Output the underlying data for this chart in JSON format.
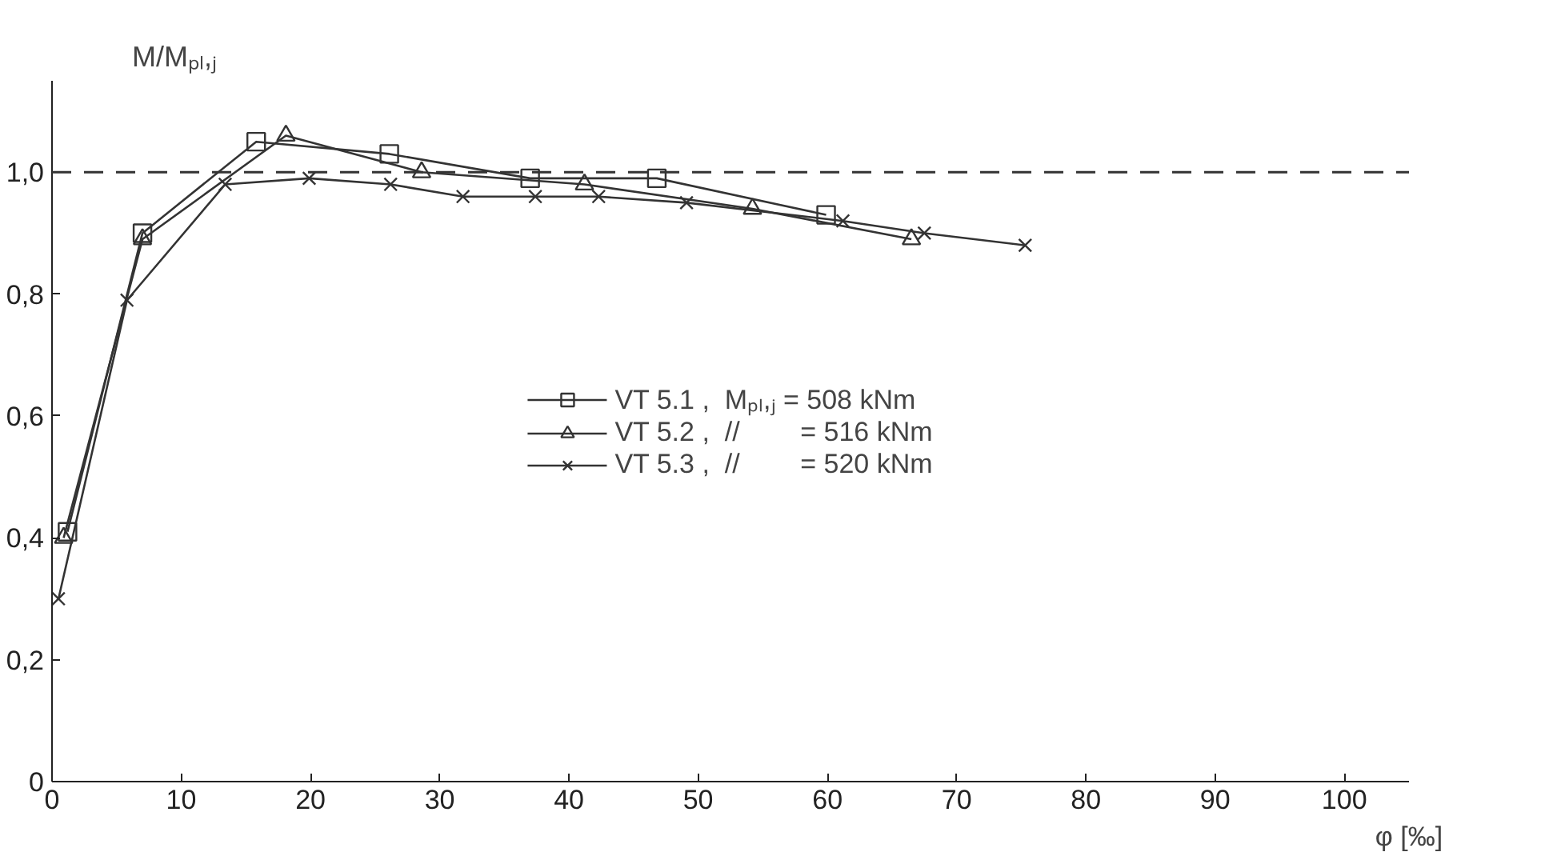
{
  "chart_data": {
    "type": "line",
    "ylabel": "M/Mₚₗ,ⱼ",
    "xlabel": "φ [‰]",
    "xlim": [
      0,
      105
    ],
    "ylim": [
      0,
      1.15
    ],
    "xticks": [
      0,
      10,
      20,
      30,
      40,
      50,
      60,
      70,
      80,
      90,
      100
    ],
    "yticks": [
      {
        "value": 0,
        "label": "0"
      },
      {
        "value": 0.2,
        "label": "0,2"
      },
      {
        "value": 0.4,
        "label": "0,4"
      },
      {
        "value": 0.6,
        "label": "0,6"
      },
      {
        "value": 0.8,
        "label": "0,8"
      },
      {
        "value": 1.0,
        "label": "1,0"
      }
    ],
    "grid": false,
    "legend": "center",
    "ref_lines": [
      {
        "axis": "y",
        "value": 1.0,
        "label": null,
        "line_style": "dashed",
        "color": "#333333"
      }
    ],
    "series": [
      {
        "name": "VT 5.1 ,  Mₚₗ,ⱼ = 508 kNm",
        "color": "#333333",
        "marker": "square",
        "x": [
          1.2,
          7.0,
          15.8,
          26.1,
          37.0,
          46.8,
          59.9
        ],
        "values": [
          0.41,
          0.9,
          1.05,
          1.03,
          0.99,
          0.99,
          0.93
        ]
      },
      {
        "name": "VT 5.2 ,  //        = 516 kNm",
        "color": "#333333",
        "marker": "triangle",
        "x": [
          0.9,
          7.0,
          18.1,
          28.6,
          41.2,
          54.2,
          66.5
        ],
        "values": [
          0.4,
          0.89,
          1.06,
          1.0,
          0.98,
          0.94,
          0.89
        ]
      },
      {
        "name": "VT 5.3 ,  //        = 520 kNm",
        "color": "#333333",
        "marker": "cross",
        "x": [
          0.5,
          5.8,
          13.4,
          19.9,
          26.2,
          31.8,
          37.4,
          42.3,
          49.1,
          61.2,
          67.5,
          75.3
        ],
        "values": [
          0.3,
          0.79,
          0.98,
          0.99,
          0.98,
          0.96,
          0.96,
          0.96,
          0.95,
          0.92,
          0.9,
          0.88
        ]
      }
    ]
  }
}
